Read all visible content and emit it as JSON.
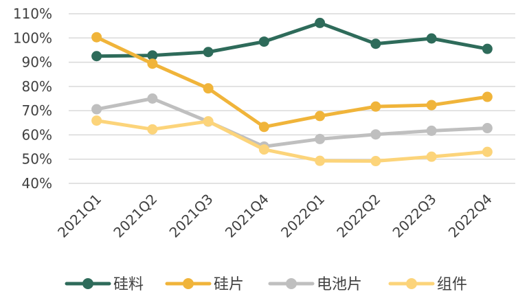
{
  "chart_data": {
    "type": "line",
    "categories": [
      "2021Q1",
      "2021Q2",
      "2021Q3",
      "2021Q4",
      "2022Q1",
      "2022Q2",
      "2022Q3",
      "2022Q4"
    ],
    "ylim": [
      40,
      110
    ],
    "yticks": [
      "40%",
      "50%",
      "60%",
      "70%",
      "80%",
      "90%",
      "100%",
      "110%"
    ],
    "ytick_values": [
      40,
      50,
      60,
      70,
      80,
      90,
      100,
      110
    ],
    "grid": true,
    "legend": "bottom",
    "series": [
      {
        "name": "硅料",
        "color": "#2e6b5a",
        "values": [
          92.5,
          92.8,
          94.2,
          98.5,
          106.2,
          97.6,
          99.8,
          95.5
        ]
      },
      {
        "name": "硅片",
        "color": "#f0b43a",
        "values": [
          100.3,
          89.4,
          79.2,
          63.3,
          67.8,
          71.7,
          72.3,
          75.7
        ]
      },
      {
        "name": "电池片",
        "color": "#bfbfbf",
        "values": [
          70.6,
          75.0,
          65.5,
          55.2,
          58.3,
          60.2,
          61.7,
          62.8
        ]
      },
      {
        "name": "组件",
        "color": "#fcd47a",
        "values": [
          65.9,
          62.3,
          65.6,
          54.0,
          49.3,
          49.2,
          51.0,
          53.0
        ]
      }
    ]
  }
}
